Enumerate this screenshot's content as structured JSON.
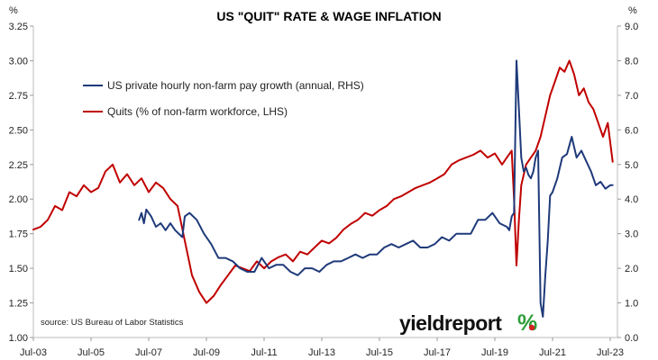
{
  "chart_data": {
    "type": "line",
    "title": "US \"QUIT\" RATE & WAGE INFLATION",
    "left_axis": {
      "unit": "%",
      "ylim": [
        1.0,
        3.25
      ],
      "ticks": [
        "1.00",
        "1.25",
        "1.50",
        "1.75",
        "2.00",
        "2.25",
        "2.50",
        "2.75",
        "3.00",
        "3.25"
      ]
    },
    "right_axis": {
      "unit": "%",
      "ylim": [
        0.0,
        9.0
      ],
      "ticks": [
        "0.0",
        "1.0",
        "2.0",
        "3.0",
        "4.0",
        "5.0",
        "6.0",
        "7.0",
        "8.0",
        "9.0"
      ]
    },
    "x_axis": {
      "range": [
        "2003-07",
        "2023-10"
      ],
      "tick_labels": [
        "Jul-03",
        "Jul-05",
        "Jul-07",
        "Jul-09",
        "Jul-11",
        "Jul-13",
        "Jul-15",
        "Jul-17",
        "Jul-19",
        "Jul-21",
        "Jul-23"
      ]
    },
    "grid": false,
    "legend_placement": "top-left",
    "series": [
      {
        "name": "US private hourly non-farm pay growth (annual, RHS)",
        "axis": "right",
        "color": "#1f3a7a",
        "x": [
          "2007-03",
          "2007-04",
          "2007-05",
          "2007-06",
          "2007-08",
          "2007-10",
          "2007-12",
          "2008-02",
          "2008-04",
          "2008-06",
          "2008-09",
          "2008-10",
          "2008-12",
          "2009-03",
          "2009-06",
          "2009-09",
          "2009-12",
          "2010-03",
          "2010-06",
          "2010-09",
          "2010-12",
          "2011-03",
          "2011-06",
          "2011-09",
          "2011-12",
          "2012-03",
          "2012-06",
          "2012-09",
          "2012-12",
          "2013-03",
          "2013-06",
          "2013-09",
          "2013-12",
          "2014-03",
          "2014-06",
          "2014-09",
          "2014-12",
          "2015-03",
          "2015-06",
          "2015-09",
          "2015-12",
          "2016-03",
          "2016-06",
          "2016-09",
          "2016-12",
          "2017-03",
          "2017-06",
          "2017-09",
          "2017-12",
          "2018-03",
          "2018-06",
          "2018-09",
          "2018-12",
          "2019-03",
          "2019-06",
          "2019-09",
          "2019-12",
          "2020-01",
          "2020-02",
          "2020-03",
          "2020-04",
          "2020-05",
          "2020-06",
          "2020-07",
          "2020-08",
          "2020-09",
          "2020-10",
          "2020-11",
          "2020-12",
          "2021-01",
          "2021-02",
          "2021-03",
          "2021-04",
          "2021-05",
          "2021-06",
          "2021-07",
          "2021-09",
          "2021-11",
          "2022-01",
          "2022-03",
          "2022-05",
          "2022-07",
          "2022-09",
          "2022-11",
          "2023-01",
          "2023-03",
          "2023-05",
          "2023-07",
          "2023-08"
        ],
        "values": [
          3.4,
          3.6,
          3.3,
          3.7,
          3.5,
          3.2,
          3.3,
          3.1,
          3.3,
          3.1,
          2.9,
          3.5,
          3.6,
          3.4,
          3.0,
          2.7,
          2.3,
          2.3,
          2.2,
          2.0,
          1.9,
          1.9,
          2.3,
          2.0,
          2.1,
          2.1,
          1.9,
          1.8,
          2.0,
          2.0,
          1.9,
          2.1,
          2.2,
          2.2,
          2.3,
          2.4,
          2.3,
          2.4,
          2.4,
          2.6,
          2.7,
          2.6,
          2.7,
          2.8,
          2.6,
          2.6,
          2.7,
          2.9,
          2.8,
          3.0,
          3.0,
          3.0,
          3.4,
          3.4,
          3.6,
          3.3,
          3.2,
          3.1,
          3.5,
          3.6,
          8.0,
          6.6,
          5.2,
          4.8,
          4.9,
          4.7,
          4.6,
          4.8,
          5.2,
          5.4,
          1.0,
          0.6,
          1.8,
          2.8,
          4.1,
          4.2,
          4.6,
          5.2,
          5.3,
          5.8,
          5.2,
          5.4,
          5.1,
          4.8,
          4.4,
          4.5,
          4.3,
          4.4,
          4.4
        ]
      },
      {
        "name": "Quits (% of non-farm workforce, LHS)",
        "axis": "left",
        "color": "#c00000",
        "x": [
          "2003-07",
          "2003-10",
          "2004-01",
          "2004-04",
          "2004-07",
          "2004-10",
          "2005-01",
          "2005-04",
          "2005-07",
          "2005-10",
          "2006-01",
          "2006-04",
          "2006-07",
          "2006-10",
          "2007-01",
          "2007-04",
          "2007-07",
          "2007-10",
          "2008-01",
          "2008-04",
          "2008-07",
          "2008-10",
          "2009-01",
          "2009-04",
          "2009-07",
          "2009-10",
          "2010-01",
          "2010-04",
          "2010-07",
          "2010-10",
          "2011-01",
          "2011-04",
          "2011-07",
          "2011-10",
          "2012-01",
          "2012-04",
          "2012-07",
          "2012-10",
          "2013-01",
          "2013-04",
          "2013-07",
          "2013-10",
          "2014-01",
          "2014-04",
          "2014-07",
          "2014-10",
          "2015-01",
          "2015-04",
          "2015-07",
          "2015-10",
          "2016-01",
          "2016-04",
          "2016-07",
          "2016-10",
          "2017-01",
          "2017-04",
          "2017-07",
          "2017-10",
          "2018-01",
          "2018-04",
          "2018-07",
          "2018-10",
          "2019-01",
          "2019-04",
          "2019-07",
          "2019-10",
          "2019-12",
          "2020-02",
          "2020-03",
          "2020-04",
          "2020-05",
          "2020-06",
          "2020-08",
          "2020-10",
          "2020-12",
          "2021-02",
          "2021-04",
          "2021-06",
          "2021-08",
          "2021-10",
          "2021-12",
          "2022-02",
          "2022-04",
          "2022-06",
          "2022-08",
          "2022-10",
          "2022-12",
          "2023-02",
          "2023-04",
          "2023-06",
          "2023-08"
        ],
        "values": [
          1.78,
          1.8,
          1.85,
          1.95,
          1.92,
          2.05,
          2.02,
          2.1,
          2.05,
          2.08,
          2.2,
          2.25,
          2.12,
          2.18,
          2.1,
          2.15,
          2.05,
          2.12,
          2.08,
          2.0,
          1.95,
          1.7,
          1.45,
          1.33,
          1.25,
          1.3,
          1.38,
          1.45,
          1.52,
          1.5,
          1.48,
          1.55,
          1.5,
          1.55,
          1.58,
          1.6,
          1.55,
          1.62,
          1.6,
          1.65,
          1.7,
          1.68,
          1.72,
          1.78,
          1.82,
          1.85,
          1.9,
          1.88,
          1.92,
          1.95,
          2.0,
          2.02,
          2.05,
          2.08,
          2.1,
          2.12,
          2.15,
          2.18,
          2.25,
          2.28,
          2.3,
          2.32,
          2.35,
          2.3,
          2.33,
          2.25,
          2.3,
          2.35,
          2.0,
          1.52,
          1.85,
          2.1,
          2.25,
          2.3,
          2.35,
          2.45,
          2.6,
          2.75,
          2.85,
          2.95,
          2.92,
          3.0,
          2.9,
          2.75,
          2.8,
          2.7,
          2.65,
          2.55,
          2.45,
          2.55,
          2.27
        ]
      }
    ],
    "source_note": "source: US Bureau of Labor Statistics"
  },
  "logo": {
    "part1": "yield",
    "part2": "report",
    "symbol": "%",
    "color_dark": "#111111",
    "color_grey": "#8a8a8a",
    "color_green": "#2e9e3a",
    "color_red": "#d22222"
  },
  "colors": {
    "axis": "#bbbbbb",
    "tick_mark": "#999999"
  }
}
